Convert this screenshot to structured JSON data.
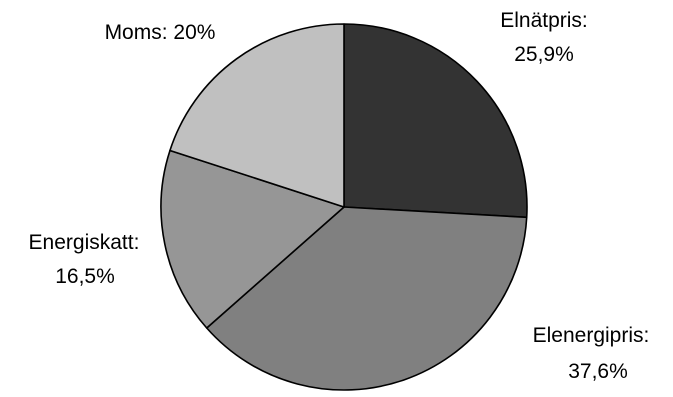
{
  "chart_data": {
    "type": "pie",
    "title": "",
    "start": "12 o'clock",
    "direction": "clockwise",
    "slices": [
      {
        "name": "Elnätpris",
        "value": 25.9,
        "label_name": "Elnätpris:",
        "label_value": "25,9%",
        "color": "#333333"
      },
      {
        "name": "Elenergipris",
        "value": 37.6,
        "label_name": "Elenergipris:",
        "label_value": "37,6%",
        "color": "#808080"
      },
      {
        "name": "Energiskatt",
        "value": 16.5,
        "label_name": "Energiskatt:",
        "label_value": "16,5%",
        "color": "#969696"
      },
      {
        "name": "Moms",
        "value": 20,
        "label_name": "Moms: 20%",
        "label_value": "",
        "color": "#c0c0c0"
      }
    ]
  }
}
